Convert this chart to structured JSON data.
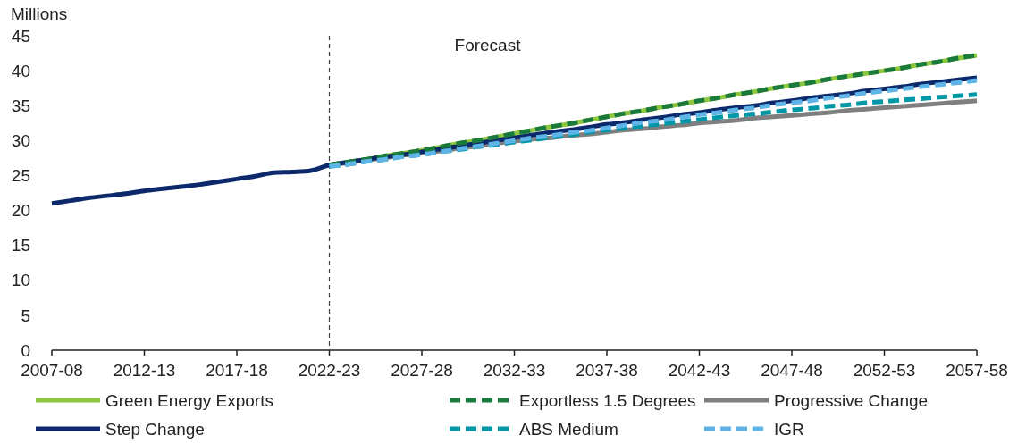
{
  "chart_data": {
    "type": "line",
    "ylabel": "Millions",
    "categories": [
      "2007-08",
      null,
      null,
      null,
      null,
      "2012-13",
      null,
      null,
      null,
      null,
      "2017-18",
      null,
      null,
      null,
      null,
      "2022-23",
      null,
      null,
      null,
      null,
      "2027-28",
      null,
      null,
      null,
      null,
      "2032-33",
      null,
      null,
      null,
      null,
      "2037-38",
      null,
      null,
      null,
      null,
      "2042-43",
      null,
      null,
      null,
      null,
      "2047-48",
      null,
      null,
      null,
      null,
      "2052-53",
      null,
      null,
      null,
      null,
      "2057-58"
    ],
    "ylim": [
      0,
      45
    ],
    "yticks": [
      0,
      5,
      10,
      15,
      20,
      25,
      30,
      35,
      40,
      45
    ],
    "grid": false,
    "legend": "bottom",
    "line_style": "solid",
    "marker": "none",
    "ref_lines": [
      {
        "axis": "x",
        "value": "2022-23",
        "line_style": "dashed",
        "color": "#404040"
      }
    ],
    "annotations": [
      "Forecast"
    ],
    "series": [
      {
        "name": "Green Energy Exports",
        "color": "#8dc63f",
        "values": [
          null,
          null,
          null,
          null,
          null,
          null,
          null,
          null,
          null,
          null,
          null,
          null,
          null,
          null,
          null,
          26.5,
          26.9,
          27.3,
          27.8,
          28.2,
          28.6,
          29.1,
          29.6,
          30.0,
          30.5,
          31.0,
          31.5,
          32.0,
          32.4,
          32.9,
          33.4,
          33.9,
          34.3,
          34.8,
          35.2,
          35.7,
          36.1,
          36.6,
          37.0,
          37.5,
          37.9,
          38.3,
          38.8,
          39.2,
          39.6,
          40.0,
          40.4,
          40.9,
          41.3,
          41.8,
          42.2
        ]
      },
      {
        "name": "Exportless 1.5 Degrees",
        "color": "#1a7a3c",
        "line_style": "dashed",
        "values": [
          null,
          null,
          null,
          null,
          null,
          null,
          null,
          null,
          null,
          null,
          null,
          null,
          null,
          null,
          null,
          26.5,
          26.9,
          27.3,
          27.8,
          28.2,
          28.6,
          29.1,
          29.6,
          30.0,
          30.5,
          31.0,
          31.5,
          32.0,
          32.4,
          32.9,
          33.4,
          33.9,
          34.3,
          34.8,
          35.2,
          35.7,
          36.1,
          36.6,
          37.0,
          37.5,
          37.9,
          38.3,
          38.8,
          39.2,
          39.6,
          40.0,
          40.4,
          40.9,
          41.3,
          41.8,
          42.2
        ]
      },
      {
        "name": "Progressive Change",
        "color": "#7f7f7f",
        "values": [
          null,
          null,
          null,
          null,
          null,
          null,
          null,
          null,
          null,
          null,
          null,
          null,
          null,
          null,
          null,
          26.5,
          26.8,
          27.2,
          27.5,
          27.9,
          28.2,
          28.5,
          28.9,
          29.2,
          29.6,
          29.9,
          30.2,
          30.4,
          30.7,
          30.9,
          31.2,
          31.5,
          31.7,
          32.0,
          32.2,
          32.5,
          32.7,
          32.9,
          33.2,
          33.4,
          33.6,
          33.8,
          34.0,
          34.3,
          34.5,
          34.7,
          34.9,
          35.1,
          35.3,
          35.5,
          35.7
        ]
      },
      {
        "name": "Step Change",
        "color": "#0c2a6b",
        "values": [
          21.0,
          21.4,
          21.8,
          22.1,
          22.4,
          22.8,
          23.1,
          23.4,
          23.7,
          24.1,
          24.5,
          24.9,
          25.4,
          25.5,
          25.7,
          26.5,
          26.9,
          27.3,
          27.7,
          28.0,
          28.4,
          28.8,
          29.2,
          29.6,
          30.0,
          30.4,
          30.8,
          31.2,
          31.5,
          31.9,
          32.3,
          32.6,
          33.0,
          33.3,
          33.7,
          34.0,
          34.4,
          34.7,
          35.0,
          35.4,
          35.7,
          36.1,
          36.4,
          36.7,
          37.1,
          37.4,
          37.7,
          38.1,
          38.4,
          38.7,
          39.0
        ]
      },
      {
        "name": "ABS Medium",
        "color": "#0097a7",
        "line_style": "dashed",
        "values": [
          null,
          null,
          null,
          null,
          null,
          null,
          null,
          null,
          null,
          null,
          null,
          null,
          null,
          null,
          null,
          26.3,
          26.6,
          27.0,
          27.3,
          27.7,
          28.0,
          28.4,
          28.7,
          29.1,
          29.4,
          29.8,
          30.1,
          30.5,
          30.8,
          31.2,
          31.5,
          31.8,
          32.1,
          32.4,
          32.7,
          33.0,
          33.3,
          33.6,
          33.8,
          34.1,
          34.4,
          34.6,
          34.9,
          35.1,
          35.4,
          35.6,
          35.8,
          36.0,
          36.2,
          36.4,
          36.6
        ]
      },
      {
        "name": "IGR",
        "color": "#5eb4e6",
        "line_style": "dashed",
        "values": [
          null,
          null,
          null,
          null,
          null,
          null,
          null,
          null,
          null,
          null,
          null,
          null,
          null,
          null,
          null,
          26.3,
          26.6,
          27.0,
          27.3,
          27.7,
          28.0,
          28.4,
          28.8,
          29.2,
          29.6,
          30.0,
          30.4,
          30.7,
          31.1,
          31.4,
          31.8,
          32.2,
          32.6,
          32.9,
          33.3,
          33.7,
          34.0,
          34.4,
          34.7,
          35.1,
          35.4,
          35.7,
          36.1,
          36.4,
          36.8,
          37.1,
          37.4,
          37.7,
          38.0,
          38.3,
          38.6
        ]
      }
    ]
  }
}
